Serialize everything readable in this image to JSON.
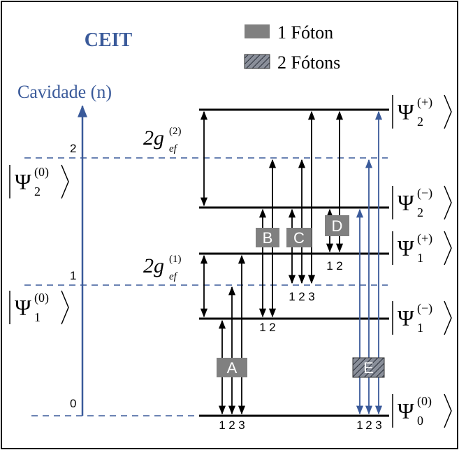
{
  "title": "CEIT",
  "legend": [
    {
      "label": "1 Fóton"
    },
    {
      "label": "2 Fótons"
    }
  ],
  "axis_label": "Cavidade (n)",
  "levels": [
    "0",
    "1",
    "2"
  ],
  "states": [
    {
      "base": "Ψ",
      "sub": "2",
      "sup": "(0)"
    },
    {
      "base": "Ψ",
      "sub": "1",
      "sup": "(0)"
    },
    {
      "base": "Ψ",
      "sub": "2",
      "sup": "(+)"
    },
    {
      "base": "Ψ",
      "sub": "2",
      "sup": "(−)"
    },
    {
      "base": "Ψ",
      "sub": "1",
      "sup": "(+)"
    },
    {
      "base": "Ψ",
      "sub": "1",
      "sup": "(−)"
    },
    {
      "base": "Ψ",
      "sub": "0",
      "sup": "(0)"
    }
  ],
  "couplings": [
    {
      "base": "2g",
      "sub": "ef",
      "sup": "(2)"
    },
    {
      "base": "2g",
      "sub": "ef",
      "sup": "(1)"
    }
  ],
  "transitions": [
    {
      "label": "A",
      "numbers": [
        "1",
        "2",
        "3"
      ]
    },
    {
      "label": "B",
      "numbers": [
        "1",
        "2"
      ]
    },
    {
      "label": "C",
      "numbers": [
        "1",
        "2",
        "3"
      ]
    },
    {
      "label": "D",
      "numbers": [
        "1",
        "2"
      ]
    },
    {
      "label": "E",
      "numbers": [
        "1",
        "2",
        "3"
      ]
    }
  ]
}
